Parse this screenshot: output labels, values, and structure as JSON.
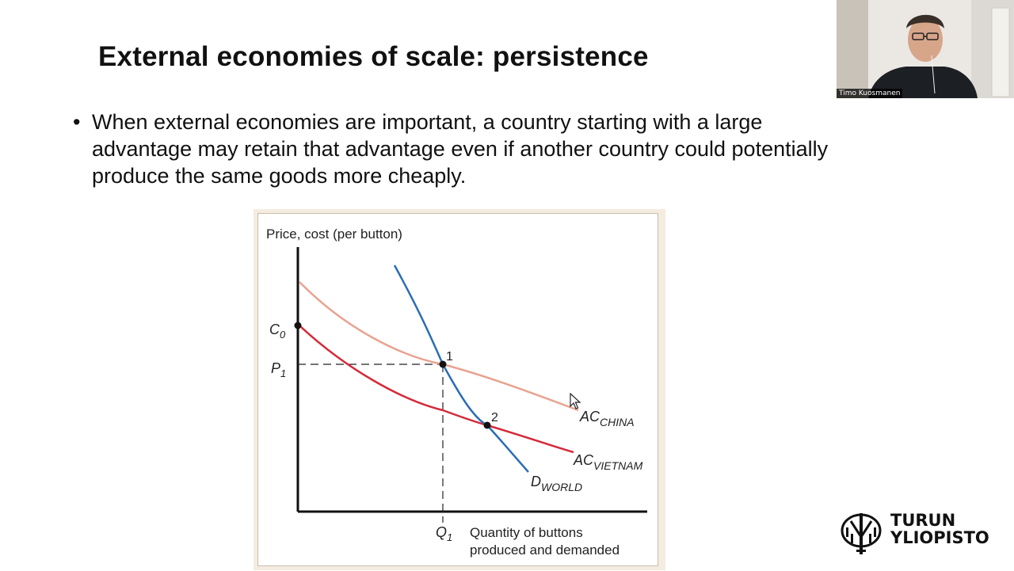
{
  "slide": {
    "title": "External economies of scale: persistence",
    "bullet": "When external economies are important, a country starting with a large advantage may retain that advantage even if another country could potentially produce the same goods more cheaply."
  },
  "figure": {
    "y_axis_label": "Price, cost (per button)",
    "x_axis_label_line1": "Quantity of buttons",
    "x_axis_label_line2": "produced and demanded",
    "c0_label": "C",
    "c0_sub": "0",
    "p1_label": "P",
    "p1_sub": "1",
    "q1_label": "Q",
    "q1_sub": "1",
    "point1_label": "1",
    "point2_label": "2",
    "ac_china_main": "AC",
    "ac_china_sub": "CHINA",
    "ac_vietnam_main": "AC",
    "ac_vietnam_sub": "VIETNAM",
    "d_world_main": "D",
    "d_world_sub": "WORLD",
    "colors": {
      "ac_china": "#e8a390",
      "ac_vietnam": "#d42a3a",
      "d_world": "#2a6db5"
    }
  },
  "chart_data": {
    "type": "line",
    "title": "",
    "ylabel": "Price, cost (per button)",
    "xlabel": "Quantity of buttons produced and demanded",
    "series": [
      {
        "name": "AC_CHINA",
        "shape": "downward-sloping curve, starts higher"
      },
      {
        "name": "AC_VIETNAM",
        "shape": "downward-sloping curve, starts at C0"
      },
      {
        "name": "D_WORLD",
        "shape": "steep downward-sloping demand curve"
      }
    ],
    "points": [
      {
        "label": "1",
        "description": "AC_CHINA meets D_WORLD at (Q1, P1)"
      },
      {
        "label": "2",
        "description": "AC_VIETNAM meets D_WORLD"
      }
    ]
  },
  "webcam": {
    "participant_name": "Timo Kuosmanen"
  },
  "logo": {
    "line1": "TURUN",
    "line2": "YLIOPISTO"
  }
}
